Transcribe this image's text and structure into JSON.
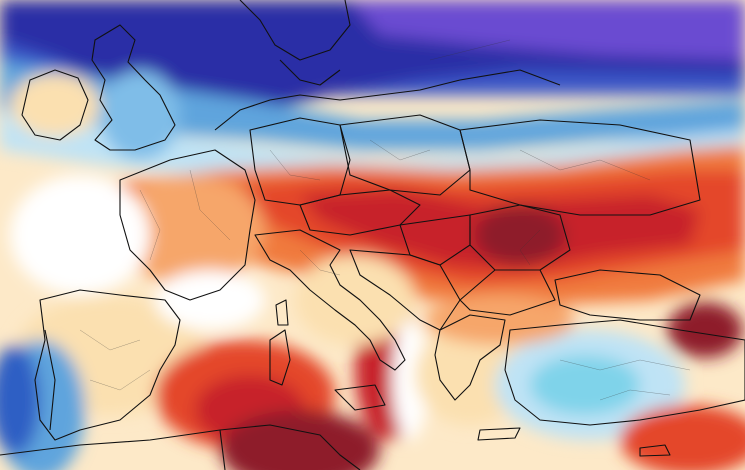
{
  "map": {
    "type": "temperature anomaly map",
    "region": "Europe",
    "colors": {
      "extreme_warm": "#8e1a2a",
      "very_warm": "#c7222a",
      "warm": "#e4472b",
      "mild_warm": "#f07a3c",
      "slight_warm": "#f6a66a",
      "near_normal_warm": "#fbe0b0",
      "neutral": "#ffffff",
      "slight_cold": "#bfe3f5",
      "cold": "#5fa4dd",
      "very_cold": "#2f5fc4",
      "extreme_cold": "#2a2fa6",
      "deep_cold": "#6a4bd1",
      "border": "#111111"
    }
  }
}
